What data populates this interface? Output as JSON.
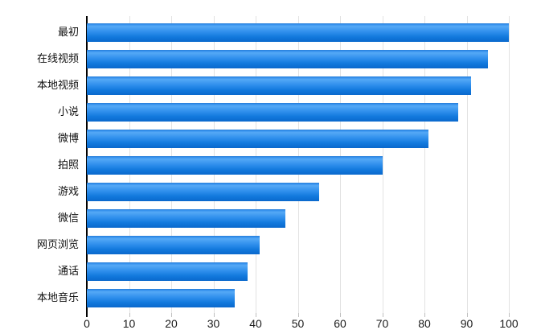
{
  "chart_data": {
    "type": "bar",
    "orientation": "horizontal",
    "title": "",
    "xlabel": "",
    "ylabel": "",
    "categories": [
      "最初",
      "在线视频",
      "本地视频",
      "小说",
      "微博",
      "拍照",
      "游戏",
      "微信",
      "网页浏览",
      "通话",
      "本地音乐"
    ],
    "values": [
      100,
      95,
      91,
      88,
      81,
      70,
      55,
      47,
      41,
      38,
      35
    ],
    "xlim": [
      0,
      100
    ],
    "xticks": [
      0,
      10,
      20,
      30,
      40,
      50,
      60,
      70,
      80,
      90,
      100
    ],
    "grid": true,
    "legend": "none",
    "colors": {
      "bar_top": "#55a9f6",
      "bar_mid": "#3190ed",
      "bar_bottom": "#0a68cc",
      "axis": "#000000",
      "gridline": "#e2e2e2",
      "tick_label": "#1a1a1a"
    }
  }
}
